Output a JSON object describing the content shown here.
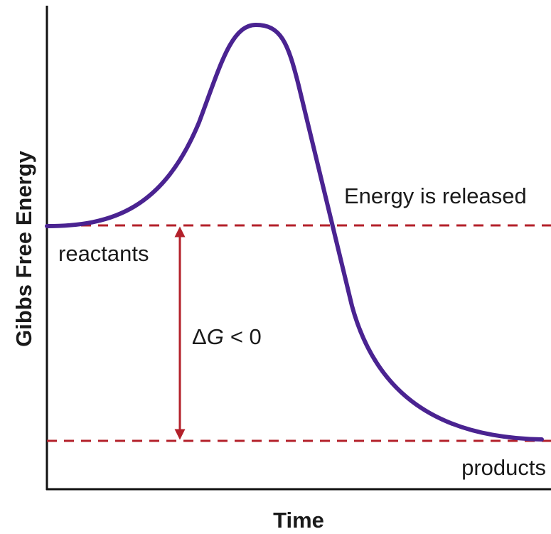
{
  "diagram": {
    "y_axis_label": "Gibbs Free Energy",
    "x_axis_label": "Time",
    "annotation": "Energy is released",
    "reactants_label": "reactants",
    "products_label": "products",
    "delta_g": {
      "symbol": "Δ",
      "variable": "G",
      "relation": "< 0"
    }
  }
}
